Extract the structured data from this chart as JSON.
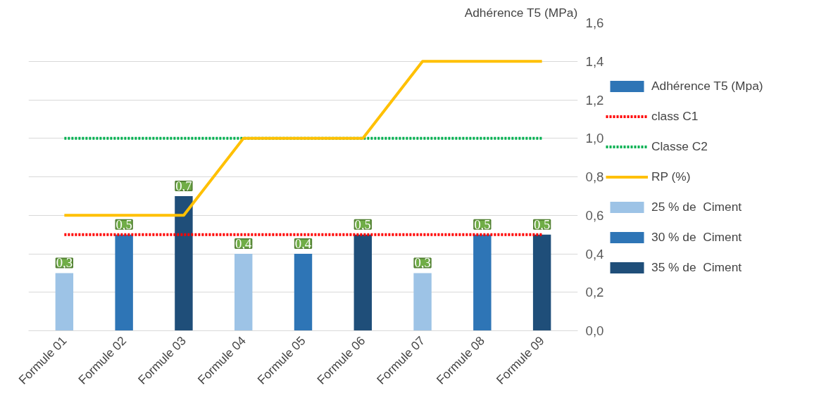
{
  "chart_data": {
    "type": "bar",
    "ylabel": "Adhérence T5 (MPa)",
    "categories": [
      "Formule 01",
      "Formule 02",
      "Formule 03",
      "Formule 04",
      "Formule 05",
      "Formule 06",
      "Formule 07",
      "Formule 08",
      "Formule 09"
    ],
    "ylim": [
      0,
      1.6
    ],
    "yticks": [
      {
        "value": 0,
        "label": "0,0"
      },
      {
        "value": 0.2,
        "label": "0,2"
      },
      {
        "value": 0.4,
        "label": "0,4"
      },
      {
        "value": 0.6,
        "label": "0,6"
      },
      {
        "value": 0.8,
        "label": "0,8"
      },
      {
        "value": 1.0,
        "label": "1,0"
      },
      {
        "value": 1.2,
        "label": "1,2"
      },
      {
        "value": 1.4,
        "label": "1,4"
      },
      {
        "value": 1.6,
        "label": "1,6"
      }
    ],
    "grid": "y",
    "legend": "right",
    "series": [
      {
        "name": "Adhérence T5 (Mpa)",
        "color": "#2e75b6",
        "colors": [
          "#9dc3e6",
          "#2e75b6",
          "#1f4e79",
          "#9dc3e6",
          "#2e75b6",
          "#1f4e79",
          "#9dc3e6",
          "#2e75b6",
          "#1f4e79"
        ],
        "values": [
          0.3,
          0.5,
          0.7,
          0.4,
          0.4,
          0.5,
          0.3,
          0.5,
          0.5
        ],
        "value_labels": [
          "0,3",
          "0,5",
          "0,7",
          "0,4",
          "0,4",
          "0,5",
          "0,3",
          "0,5",
          "0,5"
        ]
      },
      {
        "name": "class C1",
        "type": "line",
        "line_style": "dotted",
        "color": "#ff0000",
        "values": [
          0.5,
          0.5,
          0.5,
          0.5,
          0.5,
          0.5,
          0.5,
          0.5,
          0.5
        ]
      },
      {
        "name": "Classe C2",
        "type": "line",
        "line_style": "dotted",
        "color": "#00b050",
        "values": [
          1.0,
          1.0,
          1.0,
          1.0,
          1.0,
          1.0,
          1.0,
          1.0,
          1.0
        ]
      },
      {
        "name": "RP (%)",
        "type": "line",
        "color": "#ffc000",
        "values": [
          0.6,
          0.6,
          0.6,
          1.0,
          1.0,
          1.0,
          1.4,
          1.4,
          1.4
        ]
      },
      {
        "name": "25 % de  Ciment",
        "type": "bar",
        "color": "#9dc3e6",
        "values": [
          null,
          null,
          null,
          null,
          null,
          null,
          null,
          null,
          null
        ]
      },
      {
        "name": "30 % de  Ciment",
        "type": "bar",
        "color": "#2e75b6",
        "values": [
          null,
          null,
          null,
          null,
          null,
          null,
          null,
          null,
          null
        ]
      },
      {
        "name": "35 % de  Ciment",
        "type": "bar",
        "color": "#1f4e79",
        "values": [
          null,
          null,
          null,
          null,
          null,
          null,
          null,
          null,
          null
        ]
      }
    ]
  }
}
